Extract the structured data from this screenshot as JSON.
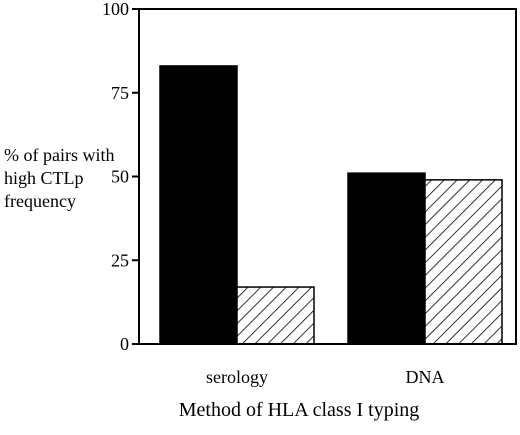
{
  "chart_data": {
    "type": "bar",
    "categories": [
      "serology",
      "DNA"
    ],
    "series": [
      {
        "values": [
          83,
          51
        ],
        "color": "#000000",
        "pattern": "solid"
      },
      {
        "values": [
          17,
          49
        ],
        "color": "#000000",
        "pattern": "diagonal-hatch"
      }
    ],
    "ylabel": "% of pairs with high CTLp frequency",
    "xlabel": "Method of HLA class I typing",
    "ylim": [
      0,
      100
    ],
    "yticks": [
      "0",
      "25",
      "50",
      "75",
      "100"
    ],
    "grid": false,
    "legend": "none"
  }
}
